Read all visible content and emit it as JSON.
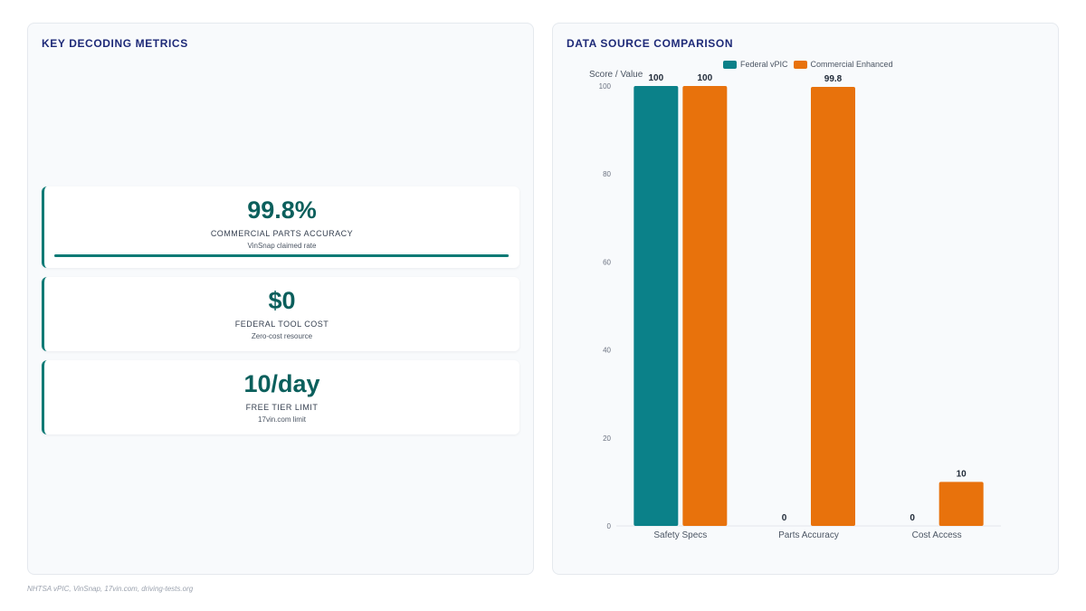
{
  "metrics_panel": {
    "title": "KEY DECODING METRICS",
    "cards": [
      {
        "value": "99.8%",
        "label": "COMMERCIAL PARTS ACCURACY",
        "sub": "VinSnap claimed rate",
        "progress": 0.998
      },
      {
        "value": "$0",
        "label": "FEDERAL TOOL COST",
        "sub": "Zero-cost resource"
      },
      {
        "value": "10/day",
        "label": "FREE TIER LIMIT",
        "sub": "17vin.com limit"
      }
    ]
  },
  "chart_panel": {
    "title": "DATA SOURCE COMPARISON"
  },
  "chart_data": {
    "type": "bar",
    "title": "DATA SOURCE COMPARISON",
    "ylabel": "Score / Value",
    "xlabel": "",
    "categories": [
      "Safety Specs",
      "Parts Accuracy",
      "Cost Access"
    ],
    "series": [
      {
        "name": "Federal vPIC",
        "values": [
          100,
          0,
          0
        ],
        "color": "#0b8189"
      },
      {
        "name": "Commercial Enhanced",
        "values": [
          100,
          99.8,
          10
        ],
        "color": "#e8720c"
      }
    ],
    "value_labels": [
      [
        "100",
        "0",
        "0"
      ],
      [
        "100",
        "99.8",
        "10"
      ]
    ],
    "ylim": [
      0,
      100
    ],
    "yticks": [
      0,
      20,
      40,
      60,
      80,
      100
    ],
    "grid": false,
    "legend": "top-center"
  },
  "footer": {
    "source": "NHTSA vPIC, VinSnap, 17vin.com, driving-tests.org"
  }
}
